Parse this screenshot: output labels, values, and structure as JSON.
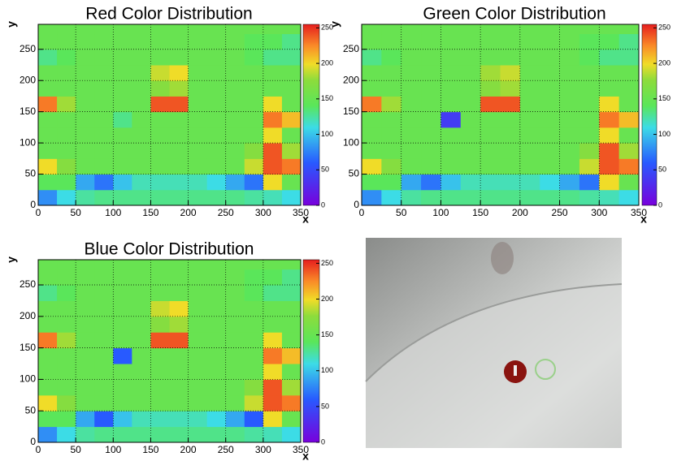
{
  "chart_data": [
    {
      "type": "heatmap",
      "title": "Red Color Distribution",
      "x_label": "x",
      "y_label": "y",
      "xlim": [
        0,
        350
      ],
      "ylim": [
        0,
        290
      ],
      "xticks": [
        0,
        50,
        100,
        150,
        200,
        250,
        300,
        350
      ],
      "yticks": [
        0,
        50,
        100,
        150,
        200,
        250
      ],
      "zlim": [
        0,
        255
      ],
      "zticks": [
        0,
        50,
        100,
        150,
        200,
        250
      ],
      "grid": true,
      "xbins": [
        0,
        25,
        50,
        75,
        100,
        125,
        150,
        175,
        200,
        225,
        250,
        275,
        300,
        325,
        350
      ],
      "ybins": [
        0,
        25,
        50,
        75,
        100,
        125,
        150,
        175,
        200,
        225,
        250,
        275,
        290
      ],
      "z": [
        [
          80,
          110,
          125,
          130,
          130,
          130,
          130,
          130,
          130,
          130,
          130,
          125,
          120,
          110
        ],
        [
          140,
          140,
          90,
          70,
          100,
          120,
          120,
          120,
          120,
          110,
          90,
          70,
          200,
          150
        ],
        [
          200,
          170,
          150,
          150,
          150,
          150,
          150,
          150,
          150,
          150,
          150,
          190,
          240,
          230
        ],
        [
          150,
          150,
          150,
          150,
          150,
          150,
          150,
          150,
          150,
          150,
          150,
          170,
          240,
          180
        ],
        [
          150,
          150,
          150,
          150,
          150,
          150,
          150,
          150,
          150,
          150,
          150,
          150,
          200,
          150
        ],
        [
          150,
          150,
          150,
          150,
          130,
          150,
          150,
          150,
          150,
          150,
          150,
          150,
          230,
          210
        ],
        [
          230,
          180,
          150,
          150,
          150,
          150,
          240,
          240,
          150,
          150,
          150,
          150,
          200,
          150
        ],
        [
          150,
          150,
          150,
          150,
          150,
          150,
          170,
          180,
          150,
          150,
          150,
          150,
          150,
          150
        ],
        [
          150,
          150,
          150,
          150,
          150,
          150,
          190,
          200,
          150,
          150,
          150,
          150,
          150,
          150
        ],
        [
          130,
          140,
          150,
          150,
          150,
          150,
          150,
          150,
          150,
          150,
          150,
          140,
          130,
          130
        ],
        [
          150,
          150,
          150,
          150,
          150,
          150,
          150,
          150,
          150,
          150,
          150,
          140,
          140,
          130
        ],
        [
          150,
          150,
          150,
          150,
          150,
          150,
          150,
          150,
          150,
          150,
          150,
          150,
          150,
          150
        ]
      ]
    },
    {
      "type": "heatmap",
      "title": "Green Color Distribution",
      "x_label": "x",
      "y_label": "y",
      "xlim": [
        0,
        350
      ],
      "ylim": [
        0,
        290
      ],
      "xticks": [
        0,
        50,
        100,
        150,
        200,
        250,
        300,
        350
      ],
      "yticks": [
        0,
        50,
        100,
        150,
        200,
        250
      ],
      "zlim": [
        0,
        255
      ],
      "zticks": [
        0,
        50,
        100,
        150,
        200,
        250
      ],
      "grid": true,
      "xbins": [
        0,
        25,
        50,
        75,
        100,
        125,
        150,
        175,
        200,
        225,
        250,
        275,
        300,
        325,
        350
      ],
      "ybins": [
        0,
        25,
        50,
        75,
        100,
        125,
        150,
        175,
        200,
        225,
        250,
        275,
        290
      ],
      "z": [
        [
          80,
          110,
          125,
          130,
          130,
          130,
          130,
          130,
          130,
          130,
          130,
          125,
          120,
          110
        ],
        [
          140,
          140,
          90,
          70,
          100,
          120,
          120,
          120,
          120,
          110,
          90,
          70,
          200,
          150
        ],
        [
          200,
          170,
          150,
          150,
          150,
          150,
          150,
          150,
          150,
          150,
          150,
          190,
          240,
          230
        ],
        [
          150,
          150,
          150,
          150,
          150,
          150,
          150,
          150,
          150,
          150,
          150,
          170,
          240,
          180
        ],
        [
          150,
          150,
          150,
          150,
          150,
          150,
          150,
          150,
          150,
          150,
          150,
          150,
          200,
          150
        ],
        [
          150,
          150,
          150,
          150,
          40,
          150,
          150,
          150,
          150,
          150,
          150,
          150,
          230,
          210
        ],
        [
          230,
          180,
          150,
          150,
          150,
          150,
          240,
          240,
          150,
          150,
          150,
          150,
          200,
          150
        ],
        [
          150,
          150,
          150,
          150,
          150,
          150,
          170,
          180,
          150,
          150,
          150,
          150,
          150,
          150
        ],
        [
          150,
          150,
          150,
          150,
          150,
          150,
          180,
          190,
          150,
          150,
          150,
          150,
          150,
          150
        ],
        [
          130,
          140,
          150,
          150,
          150,
          150,
          150,
          150,
          150,
          150,
          150,
          140,
          130,
          130
        ],
        [
          150,
          150,
          150,
          150,
          150,
          150,
          150,
          150,
          150,
          150,
          150,
          140,
          140,
          130
        ],
        [
          150,
          150,
          150,
          150,
          150,
          150,
          150,
          150,
          150,
          150,
          150,
          150,
          150,
          150
        ]
      ]
    },
    {
      "type": "heatmap",
      "title": "Blue Color Distribution",
      "x_label": "x",
      "y_label": "y",
      "xlim": [
        0,
        350
      ],
      "ylim": [
        0,
        290
      ],
      "xticks": [
        0,
        50,
        100,
        150,
        200,
        250,
        300,
        350
      ],
      "yticks": [
        0,
        50,
        100,
        150,
        200,
        250
      ],
      "zlim": [
        0,
        255
      ],
      "zticks": [
        0,
        50,
        100,
        150,
        200,
        250
      ],
      "grid": true,
      "xbins": [
        0,
        25,
        50,
        75,
        100,
        125,
        150,
        175,
        200,
        225,
        250,
        275,
        300,
        325,
        350
      ],
      "ybins": [
        0,
        25,
        50,
        75,
        100,
        125,
        150,
        175,
        200,
        225,
        250,
        275,
        290
      ],
      "z": [
        [
          80,
          110,
          125,
          130,
          130,
          130,
          130,
          130,
          130,
          130,
          130,
          125,
          120,
          110
        ],
        [
          140,
          140,
          90,
          60,
          100,
          120,
          120,
          120,
          120,
          110,
          90,
          60,
          200,
          150
        ],
        [
          200,
          170,
          150,
          150,
          150,
          150,
          150,
          150,
          150,
          150,
          150,
          190,
          240,
          230
        ],
        [
          150,
          150,
          150,
          150,
          150,
          150,
          150,
          150,
          150,
          150,
          150,
          170,
          240,
          180
        ],
        [
          150,
          150,
          150,
          150,
          150,
          150,
          150,
          150,
          150,
          150,
          150,
          150,
          200,
          150
        ],
        [
          150,
          150,
          150,
          150,
          60,
          150,
          150,
          150,
          150,
          150,
          150,
          150,
          230,
          210
        ],
        [
          230,
          180,
          150,
          150,
          150,
          150,
          240,
          240,
          150,
          150,
          150,
          150,
          200,
          150
        ],
        [
          150,
          150,
          150,
          150,
          150,
          150,
          170,
          180,
          150,
          150,
          150,
          150,
          150,
          150
        ],
        [
          150,
          150,
          150,
          150,
          150,
          150,
          190,
          200,
          150,
          150,
          150,
          150,
          150,
          150
        ],
        [
          130,
          140,
          150,
          150,
          150,
          150,
          150,
          150,
          150,
          150,
          150,
          140,
          130,
          130
        ],
        [
          150,
          150,
          150,
          150,
          150,
          150,
          150,
          150,
          150,
          150,
          150,
          140,
          140,
          130
        ],
        [
          150,
          150,
          150,
          150,
          150,
          150,
          150,
          150,
          150,
          150,
          150,
          150,
          150,
          150
        ]
      ]
    }
  ]
}
